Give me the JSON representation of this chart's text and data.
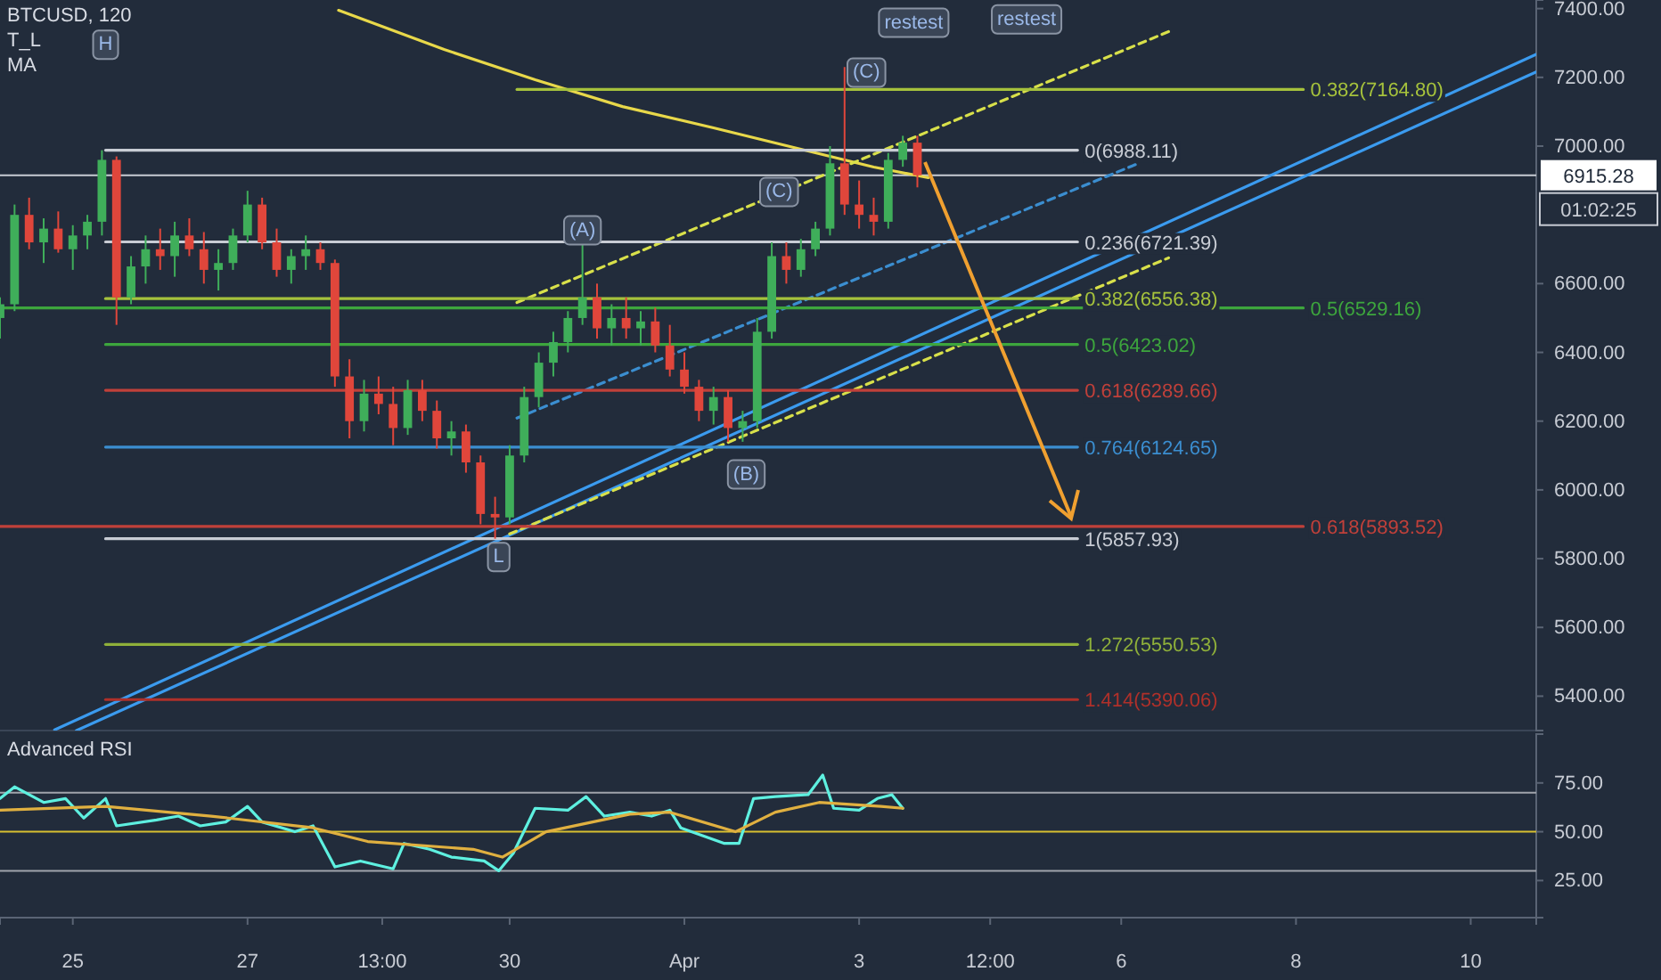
{
  "chart_data": [
    {
      "type": "candlestick",
      "title": "BTCUSD, 120",
      "annotations": [
        "T_L",
        "MA",
        "01:02:25",
        {
          "text": "H",
          "x": "--03-25T09:00",
          "y": 7300
        },
        {
          "text": "L",
          "x": "--03-29T21:00",
          "y": 5810
        },
        {
          "text": "(A)",
          "x": "--03-30T20:00",
          "y": 6760
        },
        {
          "text": "(B)",
          "x": "--04-01T17:00",
          "y": 6050
        },
        {
          "text": "(C)",
          "x": "--04-02T02:00",
          "y": 6872
        },
        {
          "text": "(C)",
          "x": "--04-03T02:00",
          "y": 7219
        },
        {
          "text": "restest",
          "x": "--04-03T15:00",
          "y": 7364
        },
        {
          "text": "restest",
          "x": "--04-04T22:00",
          "y": 7374
        }
      ],
      "x": [
        "--03-24T04:00",
        "--03-24T08:00",
        "--03-24T12:00",
        "--03-24T16:00",
        "--03-24T20:00",
        "--03-25T00:00",
        "--03-25T04:00",
        "--03-25T08:00",
        "--03-25T12:00",
        "--03-25T16:00",
        "--03-25T20:00",
        "--03-26T00:00",
        "--03-26T04:00",
        "--03-26T08:00",
        "--03-26T12:00",
        "--03-26T16:00",
        "--03-26T20:00",
        "--03-27T00:00",
        "--03-27T04:00",
        "--03-27T08:00",
        "--03-27T12:00",
        "--03-27T16:00",
        "--03-27T20:00",
        "--03-28T00:00",
        "--03-28T04:00",
        "--03-28T08:00",
        "--03-28T12:00",
        "--03-28T16:00",
        "--03-28T20:00",
        "--03-29T00:00",
        "--03-29T04:00",
        "--03-29T08:00",
        "--03-29T12:00",
        "--03-29T16:00",
        "--03-29T20:00",
        "--03-30T00:00",
        "--03-30T04:00",
        "--03-30T08:00",
        "--03-30T12:00",
        "--03-30T16:00",
        "--03-30T20:00",
        "--03-31T00:00",
        "--03-31T04:00",
        "--03-31T08:00",
        "--03-31T12:00",
        "--03-31T16:00",
        "--03-31T20:00",
        "--04-01T00:00",
        "--04-01T04:00",
        "--04-01T08:00",
        "--04-01T12:00",
        "--04-01T16:00",
        "--04-01T20:00",
        "--04-02T00:00",
        "--04-02T04:00",
        "--04-02T08:00",
        "--04-02T12:00",
        "--04-02T16:00",
        "--04-02T20:00",
        "--04-03T00:00",
        "--04-03T04:00",
        "--04-03T08:00",
        "--04-03T12:00",
        "--04-03T16:00"
      ],
      "ohlc": [
        [
          6500,
          6560,
          6440,
          6540
        ],
        [
          6540,
          6830,
          6520,
          6800
        ],
        [
          6800,
          6850,
          6700,
          6720
        ],
        [
          6720,
          6790,
          6660,
          6760
        ],
        [
          6760,
          6810,
          6690,
          6700
        ],
        [
          6700,
          6770,
          6640,
          6740
        ],
        [
          6740,
          6800,
          6700,
          6780
        ],
        [
          6780,
          6988,
          6740,
          6960
        ],
        [
          6960,
          6970,
          6480,
          6560
        ],
        [
          6560,
          6680,
          6540,
          6650
        ],
        [
          6650,
          6740,
          6600,
          6700
        ],
        [
          6700,
          6760,
          6640,
          6680
        ],
        [
          6680,
          6780,
          6620,
          6740
        ],
        [
          6740,
          6790,
          6680,
          6700
        ],
        [
          6700,
          6750,
          6600,
          6640
        ],
        [
          6640,
          6700,
          6580,
          6660
        ],
        [
          6660,
          6760,
          6640,
          6740
        ],
        [
          6740,
          6870,
          6720,
          6830
        ],
        [
          6830,
          6850,
          6700,
          6720
        ],
        [
          6720,
          6760,
          6620,
          6640
        ],
        [
          6640,
          6700,
          6600,
          6680
        ],
        [
          6680,
          6740,
          6640,
          6700
        ],
        [
          6700,
          6720,
          6640,
          6660
        ],
        [
          6660,
          6670,
          6300,
          6330
        ],
        [
          6330,
          6380,
          6150,
          6200
        ],
        [
          6200,
          6320,
          6170,
          6280
        ],
        [
          6280,
          6330,
          6220,
          6250
        ],
        [
          6250,
          6300,
          6130,
          6180
        ],
        [
          6180,
          6320,
          6160,
          6290
        ],
        [
          6290,
          6320,
          6200,
          6230
        ],
        [
          6230,
          6260,
          6120,
          6150
        ],
        [
          6150,
          6200,
          6100,
          6170
        ],
        [
          6170,
          6190,
          6050,
          6080
        ],
        [
          6080,
          6100,
          5900,
          5930
        ],
        [
          5930,
          5980,
          5858,
          5920
        ],
        [
          5920,
          6130,
          5900,
          6100
        ],
        [
          6100,
          6300,
          6080,
          6270
        ],
        [
          6270,
          6400,
          6240,
          6370
        ],
        [
          6370,
          6460,
          6330,
          6430
        ],
        [
          6430,
          6520,
          6400,
          6500
        ],
        [
          6500,
          6720,
          6480,
          6560
        ],
        [
          6560,
          6600,
          6440,
          6470
        ],
        [
          6470,
          6540,
          6420,
          6500
        ],
        [
          6500,
          6560,
          6440,
          6470
        ],
        [
          6470,
          6520,
          6420,
          6490
        ],
        [
          6490,
          6530,
          6400,
          6420
        ],
        [
          6420,
          6480,
          6330,
          6350
        ],
        [
          6350,
          6400,
          6280,
          6300
        ],
        [
          6300,
          6320,
          6200,
          6230
        ],
        [
          6230,
          6300,
          6190,
          6270
        ],
        [
          6270,
          6290,
          6140,
          6180
        ],
        [
          6180,
          6230,
          6140,
          6200
        ],
        [
          6200,
          6500,
          6180,
          6460
        ],
        [
          6460,
          6720,
          6440,
          6680
        ],
        [
          6680,
          6720,
          6600,
          6640
        ],
        [
          6640,
          6730,
          6620,
          6700
        ],
        [
          6700,
          6780,
          6680,
          6760
        ],
        [
          6760,
          7000,
          6740,
          6950
        ],
        [
          6950,
          7230,
          6800,
          6830
        ],
        [
          6830,
          6900,
          6760,
          6800
        ],
        [
          6800,
          6850,
          6740,
          6780
        ],
        [
          6780,
          6980,
          6760,
          6960
        ],
        [
          6960,
          7030,
          6940,
          7010
        ],
        [
          7010,
          7030,
          6880,
          6915.28
        ]
      ],
      "series": [
        {
          "type": "line",
          "color": "#e8d84a",
          "x": [
            "--03-28T01:00",
            "--03-29T06:00",
            "--03-30T07:00",
            "--03-31T07:00",
            "--04-01T08:00",
            "--04-02T08:00",
            "--04-03T04:00",
            "--04-03T19:00"
          ],
          "values": [
            7395,
            7281,
            7193,
            7115,
            7053,
            6991,
            6939,
            6908
          ]
        },
        {
          "type": "line",
          "color": "#3b9bef",
          "x": [
            "--03-24T19:00",
            "--04-10T18:00"
          ],
          "values": [
            5302,
            7267
          ]
        },
        {
          "type": "line",
          "color": "#3b9bef",
          "x": [
            "--03-25T01:00",
            "--04-10T18:00"
          ],
          "values": [
            5300,
            7216
          ]
        },
        {
          "type": "line",
          "color": "#d8e04a",
          "line_style": "dashed",
          "x": [
            "--03-30T02:00",
            "--04-06T13:00"
          ],
          "values": [
            6545,
            7333
          ]
        },
        {
          "type": "line",
          "color": "#d8e04a",
          "line_style": "dashed",
          "x": [
            "--03-30T00:00",
            "--04-06T13:00"
          ],
          "values": [
            5872,
            6675
          ]
        },
        {
          "type": "line",
          "color": "#3b8ed0",
          "line_style": "dashed",
          "x": [
            "--03-30T02:00",
            "--04-06T05:00"
          ],
          "values": [
            6209,
            6951
          ]
        },
        {
          "type": "line",
          "name": "0(6988.11)",
          "color": "#c8ccd4",
          "x": [
            "--03-25T09:00",
            "--04-05T12:00"
          ],
          "values": [
            6988.11,
            6988.11
          ]
        },
        {
          "type": "line",
          "name": "0.236(6721.39)",
          "color": "#c8ccd4",
          "x": [
            "--03-25T09:00",
            "--04-05T12:00"
          ],
          "values": [
            6721.39,
            6721.39
          ]
        },
        {
          "type": "line",
          "name": "0.382(6556.38)",
          "color": "#a6c23c",
          "x": [
            "--03-25T09:00",
            "--04-05T12:00"
          ],
          "values": [
            6556.38,
            6556.38
          ]
        },
        {
          "type": "line",
          "name": "0.5(6423.02)",
          "color": "#3da63d",
          "x": [
            "--03-25T09:00",
            "--04-05T12:00"
          ],
          "values": [
            6423.02,
            6423.02
          ]
        },
        {
          "type": "line",
          "name": "0.618(6289.66)",
          "color": "#c0403a",
          "x": [
            "--03-25T09:00",
            "--04-05T12:00"
          ],
          "values": [
            6289.66,
            6289.66
          ]
        },
        {
          "type": "line",
          "name": "0.764(6124.65)",
          "color": "#3b8ed0",
          "x": [
            "--03-25T09:00",
            "--04-05T12:00"
          ],
          "values": [
            6124.65,
            6124.65
          ]
        },
        {
          "type": "line",
          "name": "1(5857.93)",
          "color": "#c8ccd4",
          "x": [
            "--03-25T09:00",
            "--04-05T12:00"
          ],
          "values": [
            5857.93,
            5857.93
          ]
        },
        {
          "type": "line",
          "name": "1.272(5550.53)",
          "color": "#8fb03a",
          "x": [
            "--03-25T09:00",
            "--04-05T12:00"
          ],
          "values": [
            5550.53,
            5550.53
          ]
        },
        {
          "type": "line",
          "name": "1.414(5390.06)",
          "color": "#b0302a",
          "x": [
            "--03-25T09:00",
            "--04-05T12:00"
          ],
          "values": [
            5390.06,
            5390.06
          ]
        },
        {
          "type": "line",
          "name": "0.382(7164.80)",
          "color": "#a6c23c",
          "x": [
            "--03-30T02:00",
            "--04-08T02:00"
          ],
          "values": [
            7164.8,
            7164.8
          ]
        },
        {
          "type": "line",
          "name": "0.5(6529.16)",
          "color": "#3da63d",
          "x": [
            "--03-24T04:00",
            "--04-08T02:00"
          ],
          "values": [
            6529.16,
            6529.16
          ]
        },
        {
          "type": "line",
          "name": "0.618(5893.52)",
          "color": "#c0403a",
          "x": [
            "--03-24T04:00",
            "--04-08T02:00"
          ],
          "values": [
            5893.52,
            5893.52
          ]
        }
      ],
      "ref_lines": [
        {
          "axis": "y",
          "value": 6915.28,
          "label": "6915.28",
          "color": "#c8ccd4"
        }
      ],
      "xlim": [
        "--03-24T04:00",
        "--04-10T18:00"
      ],
      "ylim": [
        5300,
        7425
      ],
      "yticks": [
        {
          "value": 5400,
          "label": "5400.00"
        },
        {
          "value": 5600,
          "label": "5600.00"
        },
        {
          "value": 5800,
          "label": "5800.00"
        },
        {
          "value": 6000,
          "label": "6000.00"
        },
        {
          "value": 6200,
          "label": "6200.00"
        },
        {
          "value": 6400,
          "label": "6400.00"
        },
        {
          "value": 6600,
          "label": "6600.00"
        },
        {
          "value": 7000,
          "label": "7000.00"
        },
        {
          "value": 7200,
          "label": "7200.00"
        },
        {
          "value": 7400,
          "label": "7400.00"
        }
      ],
      "tick_labels": "y"
    },
    {
      "type": "line",
      "title": "Advanced RSI",
      "series": [
        {
          "color": "#5ef0e0",
          "x": [
            "--03-24T04:00",
            "--03-24T08:00",
            "--03-24T16:00",
            "--03-24T22:00",
            "--03-25T03:00",
            "--03-25T09:00",
            "--03-25T12:00",
            "--03-25T23:00",
            "--03-26T05:00",
            "--03-26T11:00",
            "--03-26T18:00",
            "--03-27T00:00",
            "--03-27T04:00",
            "--03-27T13:00",
            "--03-27T18:00",
            "--03-28T00:00",
            "--03-28T07:00",
            "--03-28T16:00",
            "--03-28T19:00",
            "--03-29T02:00",
            "--03-29T08:00",
            "--03-29T17:00",
            "--03-29T21:00",
            "--03-30T01:00",
            "--03-30T07:00",
            "--03-30T16:00",
            "--03-30T21:00",
            "--03-31T02:00",
            "--03-31T09:00",
            "--03-31T15:00",
            "--03-31T20:00",
            "--03-31T23:00",
            "--04-01T05:00",
            "--04-01T11:00",
            "--04-01T15:00",
            "--04-01T19:00",
            "--04-02T01:00",
            "--04-02T10:00",
            "--04-02T14:00",
            "--04-02T17:00",
            "--04-03T00:00",
            "--04-03T05:00",
            "--04-03T09:00",
            "--04-03T12:00"
          ],
          "values": [
            67,
            73,
            65,
            67,
            57,
            67,
            53,
            56,
            58,
            53,
            55,
            63,
            55,
            50,
            53,
            32,
            35,
            31,
            44,
            41,
            37,
            35,
            30,
            39,
            62,
            61,
            68,
            58,
            60,
            58,
            61,
            52,
            48,
            44,
            44,
            67,
            68,
            69,
            79,
            62,
            61,
            67,
            69,
            62
          ]
        },
        {
          "color": "#e0b040",
          "x": [
            "--03-24T04:00",
            "--03-25T09:00",
            "--03-26T14:00",
            "--03-27T18:00",
            "--03-28T09:00",
            "--03-29T14:00",
            "--03-29T22:00",
            "--03-30T10:00",
            "--03-31T09:00",
            "--03-31T20:00",
            "--04-01T14:00",
            "--04-02T01:00",
            "--04-02T13:00",
            "--04-03T06:00",
            "--04-03T12:00"
          ],
          "values": [
            61,
            63,
            58,
            52,
            45,
            41,
            37,
            50,
            59,
            60,
            50,
            60,
            65,
            63,
            62
          ]
        }
      ],
      "ref_lines": [
        {
          "axis": "y",
          "value": 70,
          "color": "#a0a4ac"
        },
        {
          "axis": "y",
          "value": 50,
          "color": "#d8c030"
        },
        {
          "axis": "y",
          "value": 30,
          "color": "#a0a4ac"
        }
      ],
      "xlim": [
        "--03-24T04:00",
        "--04-10T18:00"
      ],
      "ylim": [
        6,
        100
      ],
      "xticks": [
        {
          "value": "--03-25",
          "label": "25"
        },
        {
          "value": "--03-27",
          "label": "27"
        },
        {
          "value": "--03-28T13:00",
          "label": "13:00"
        },
        {
          "value": "--03-30",
          "label": "30"
        },
        {
          "value": "--04-01",
          "label": "Apr"
        },
        {
          "value": "--04-03",
          "label": "3"
        },
        {
          "value": "--04-04T12:00",
          "label": "12:00"
        },
        {
          "value": "--04-06",
          "label": "6"
        },
        {
          "value": "--04-08",
          "label": "8"
        },
        {
          "value": "--04-10",
          "label": "10"
        }
      ],
      "yticks": [
        {
          "value": 25,
          "label": "25.00"
        },
        {
          "value": 50,
          "label": "50.00"
        },
        {
          "value": 75,
          "label": "75.00"
        }
      ]
    }
  ]
}
